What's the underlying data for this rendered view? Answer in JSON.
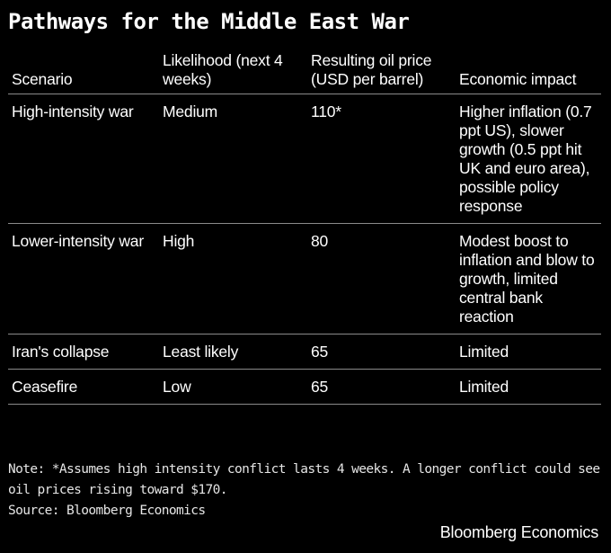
{
  "title": "Pathways for the Middle East War",
  "table": {
    "headers": [
      "Scenario",
      "Likelihood (next 4 weeks)",
      "Resulting oil price (USD per barrel)",
      "Economic impact"
    ],
    "rows": [
      {
        "scenario": "High-intensity war",
        "likelihood": "Medium",
        "oil_price": "110*",
        "impact": "Higher inflation (0.7 ppt US), slower growth (0.5 ppt hit UK and euro area), possible policy response"
      },
      {
        "scenario": "Lower-intensity war",
        "likelihood": "High",
        "oil_price": "80",
        "impact": "Modest boost to inflation and blow to growth, limited central bank reaction"
      },
      {
        "scenario": "Iran's collapse",
        "likelihood": "Least likely",
        "oil_price": "65",
        "impact": "Limited"
      },
      {
        "scenario": "Ceasefire",
        "likelihood": "Low",
        "oil_price": "65",
        "impact": "Limited"
      }
    ]
  },
  "note": "Note: *Assumes high intensity conflict lasts 4 weeks. A longer conflict could see oil prices rising toward $170.",
  "source": "Source: Bloomberg Economics",
  "brand": "Bloomberg Economics"
}
